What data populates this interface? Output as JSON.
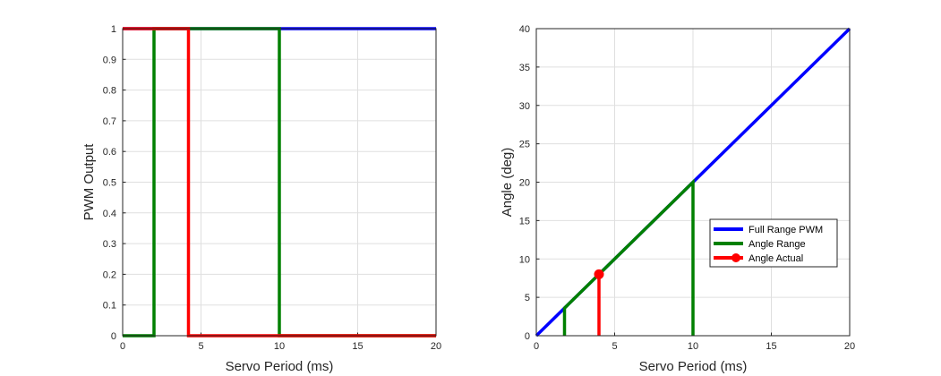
{
  "chart_data": [
    {
      "type": "line",
      "title": "",
      "xlabel": "Servo Period (ms)",
      "ylabel": "PWM Output",
      "xlim": [
        0,
        20
      ],
      "ylim": [
        0,
        1
      ],
      "xticks": [
        "0",
        "5",
        "10",
        "15",
        "20"
      ],
      "yticks": [
        "0",
        "0.1",
        "0.2",
        "0.3",
        "0.4",
        "0.5",
        "0.6",
        "0.7",
        "0.8",
        "0.9",
        "1"
      ],
      "grid": true,
      "series": [
        {
          "color": "#0000ff",
          "x": [
            0,
            20
          ],
          "y": [
            1,
            1
          ]
        },
        {
          "color": "#008000",
          "x": [
            0,
            2,
            2,
            10,
            10,
            20
          ],
          "y": [
            0,
            0,
            1,
            1,
            0,
            0
          ]
        },
        {
          "color": "#ff0000",
          "x": [
            0,
            4.2,
            4.2,
            20
          ],
          "y": [
            1,
            1,
            0,
            0
          ]
        }
      ]
    },
    {
      "type": "line",
      "title": "",
      "xlabel": "Servo Period (ms)",
      "ylabel": "Angle (deg)",
      "xlim": [
        0,
        20
      ],
      "ylim": [
        0,
        40
      ],
      "xticks": [
        "0",
        "5",
        "10",
        "15",
        "20"
      ],
      "yticks": [
        "0",
        "5",
        "10",
        "15",
        "20",
        "25",
        "30",
        "35",
        "40"
      ],
      "grid": true,
      "legend_position": "right",
      "series": [
        {
          "name": "Full Range PWM",
          "color": "#0000ff",
          "x": [
            0,
            20
          ],
          "y": [
            0,
            40
          ]
        },
        {
          "name": "Angle Range",
          "color": "#008000",
          "x": [
            1.8,
            1.8,
            10,
            10
          ],
          "y": [
            0,
            3.6,
            20,
            0
          ]
        },
        {
          "name": "Angle Actual",
          "color": "#ff0000",
          "x": [
            4,
            4
          ],
          "y": [
            0,
            8
          ],
          "marker_point": [
            4,
            8
          ]
        }
      ]
    }
  ]
}
